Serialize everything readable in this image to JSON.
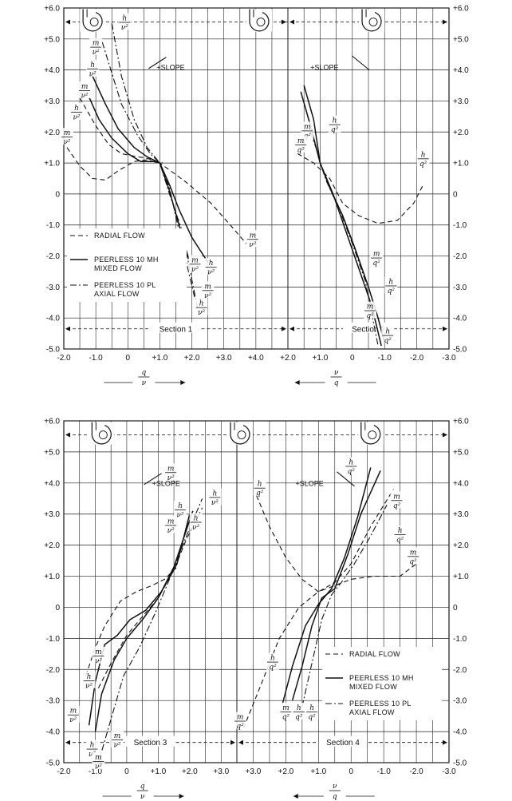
{
  "chart_data": [
    {
      "type": "line",
      "title": "",
      "y_ticks": [
        "+6.0",
        "+5.0",
        "+4.0",
        "+3.0",
        "+2.0",
        "+1.0",
        "0",
        "-1.0",
        "-2.0",
        "-3.0",
        "-4.0",
        "-5.0"
      ],
      "ylim": [
        -5,
        6
      ],
      "grid": true,
      "x_axis_left": {
        "label_num": "q",
        "label_den": "ν",
        "ticks": [
          "-2.0",
          "-1.0",
          "0",
          "+1.0",
          "+2.0",
          "+3.0",
          "+4.0"
        ],
        "range": [
          -2,
          5
        ]
      },
      "x_axis_right": {
        "label_num": "ν",
        "label_den": "q",
        "ticks": [
          "+2.0",
          "+1.0",
          "0",
          "-1.0",
          "-2.0",
          "-3.0"
        ],
        "range": [
          2,
          -3
        ]
      },
      "sections": [
        "Section 1",
        "Section 2"
      ],
      "slope_labels": [
        "+SLOPE",
        "+SLOPE"
      ],
      "legend": [
        "RADIAL FLOW",
        "PEERLESS 10 MH MIXED FLOW",
        "PEERLESS 10 PL AXIAL FLOW"
      ],
      "legend_lines": [
        [
          "RADIAL FLOW"
        ],
        [
          "PEERLESS 10 MH",
          "MIXED FLOW"
        ],
        [
          "PEERLESS 10 PL",
          "AXIAL FLOW"
        ]
      ],
      "curve_labels_left": [
        {
          "num": "h",
          "den": "ν²",
          "x": -0.1,
          "y": 5.6
        },
        {
          "num": "m",
          "den": "ν²",
          "x": -1.0,
          "y": 4.8
        },
        {
          "num": "h",
          "den": "ν²",
          "x": -1.1,
          "y": 4.1
        },
        {
          "num": "m",
          "den": "ν²",
          "x": -1.35,
          "y": 3.4
        },
        {
          "num": "h",
          "den": "ν²",
          "x": -1.6,
          "y": 2.7
        },
        {
          "num": "m",
          "den": "ν²",
          "x": -1.9,
          "y": 1.9
        },
        {
          "num": "m",
          "den": "ν²",
          "x": 3.9,
          "y": -1.4
        },
        {
          "num": "m",
          "den": "ν²",
          "x": 2.1,
          "y": -2.2
        },
        {
          "num": "h",
          "den": "ν²",
          "x": 2.6,
          "y": -2.3
        },
        {
          "num": "m",
          "den": "ν²",
          "x": 2.5,
          "y": -3.05
        },
        {
          "num": "h",
          "den": "ν²",
          "x": 2.3,
          "y": -3.6
        }
      ],
      "curve_labels_right": [
        {
          "num": "h",
          "den": "q²",
          "x": 0.55,
          "y": 2.3
        },
        {
          "num": "m",
          "den": "q²",
          "x": 1.4,
          "y": 2.1
        },
        {
          "num": "m",
          "den": "q²",
          "x": 1.6,
          "y": 1.65
        },
        {
          "num": "h",
          "den": "q²",
          "x": -2.2,
          "y": 1.2
        },
        {
          "num": "m",
          "den": "q²",
          "x": -0.75,
          "y": -2.0
        },
        {
          "num": "h",
          "den": "q²",
          "x": -1.2,
          "y": -2.9
        },
        {
          "num": "m",
          "den": "q²",
          "x": -0.55,
          "y": -3.7
        },
        {
          "num": "h",
          "den": "q²",
          "x": -1.1,
          "y": -4.5
        }
      ],
      "series": [
        {
          "style": "dash",
          "side": "left",
          "x": [
            -1.9,
            -1.5,
            -1.1,
            -0.7,
            -0.3,
            0.2,
            0.6,
            1.0,
            1.8,
            2.6,
            3.2,
            3.7
          ],
          "y": [
            1.5,
            0.9,
            0.5,
            0.45,
            0.75,
            1.05,
            1.1,
            1.0,
            0.4,
            -0.3,
            -1.0,
            -1.6
          ]
        },
        {
          "style": "dash",
          "side": "left",
          "x": [
            -1.5,
            -1.0,
            -0.6,
            -0.2,
            0.3,
            0.6,
            0.9,
            1.1
          ],
          "y": [
            3.1,
            2.2,
            1.6,
            1.3,
            1.2,
            1.15,
            1.05,
            1.0
          ]
        },
        {
          "style": "solid",
          "side": "left",
          "x": [
            -1.2,
            -0.9,
            -0.5,
            0.0,
            0.4,
            0.8,
            1.0,
            1.3,
            1.6,
            2.0,
            2.5
          ],
          "y": [
            3.1,
            2.4,
            1.8,
            1.3,
            1.05,
            1.05,
            1.0,
            0.3,
            -0.5,
            -1.4,
            -2.2
          ]
        },
        {
          "style": "solid",
          "side": "left",
          "x": [
            -1.1,
            -0.7,
            -0.3,
            0.2,
            0.6,
            1.0,
            1.3,
            1.6,
            1.9
          ],
          "y": [
            3.8,
            2.9,
            2.1,
            1.5,
            1.2,
            1.0,
            0.1,
            -1.0,
            -2.1
          ]
        },
        {
          "style": "dashdot",
          "side": "left",
          "x": [
            -0.8,
            -0.5,
            -0.2,
            0.3,
            0.7,
            1.0,
            1.3,
            1.6,
            2.1
          ],
          "y": [
            4.9,
            3.9,
            2.9,
            1.9,
            1.3,
            1.0,
            0.2,
            -1.2,
            -3.4
          ]
        },
        {
          "style": "dashdot",
          "side": "left",
          "x": [
            -0.5,
            -0.2,
            0.2,
            0.6,
            1.0,
            1.3,
            1.7,
            2.2
          ],
          "y": [
            5.5,
            3.8,
            2.4,
            1.5,
            1.0,
            0.0,
            -1.2,
            -3.8
          ]
        },
        {
          "style": "dash",
          "side": "right",
          "x": [
            1.7,
            1.2,
            0.7,
            0.3,
            -0.2,
            -0.8,
            -1.4,
            -1.9,
            -2.2
          ],
          "y": [
            1.3,
            1.0,
            0.5,
            -0.3,
            -0.7,
            -0.95,
            -0.85,
            -0.3,
            0.3
          ]
        },
        {
          "style": "solid",
          "side": "right",
          "x": [
            1.6,
            1.3,
            1.0,
            0.7,
            0.3,
            -0.1,
            -0.5,
            -0.8,
            -1.0
          ],
          "y": [
            3.3,
            2.2,
            1.0,
            0.2,
            -0.7,
            -1.8,
            -3.0,
            -4.0,
            -4.8
          ]
        },
        {
          "style": "solid",
          "side": "right",
          "x": [
            1.5,
            1.2,
            1.0,
            0.6,
            0.2,
            -0.2,
            -0.6,
            -0.9
          ],
          "y": [
            3.5,
            2.4,
            1.0,
            0.0,
            -1.2,
            -2.4,
            -3.6,
            -4.9
          ]
        },
        {
          "style": "dashdot",
          "side": "right",
          "x": [
            1.3,
            1.1,
            1.0,
            0.8,
            0.4,
            0.0,
            -0.4,
            -0.8
          ],
          "y": [
            2.0,
            1.4,
            1.0,
            0.4,
            -0.5,
            -1.6,
            -2.8,
            -4.9
          ]
        }
      ]
    },
    {
      "type": "line",
      "title": "",
      "y_ticks": [
        "+6.0",
        "+5.0",
        "+4.0",
        "+3.0",
        "+2.0",
        "+1.0",
        "0",
        "-1.0",
        "-2.0",
        "-3.0",
        "-4.0",
        "-5.0"
      ],
      "ylim": [
        -5,
        6
      ],
      "grid": true,
      "x_axis_left": {
        "label_num": "q",
        "label_den": "ν",
        "ticks": [
          "-2.0",
          "-1.0",
          "0",
          "+1.0",
          "+2.0",
          "+3.0"
        ],
        "range": [
          -2,
          3.5
        ]
      },
      "x_axis_right": {
        "label_num": "ν",
        "label_den": "q",
        "ticks": [
          "+3.0",
          "+2.0",
          "+1.0",
          "0",
          "-1.0",
          "-2.0",
          "-3.0"
        ],
        "range": [
          3.5,
          -3
        ]
      },
      "sections": [
        "Section 3",
        "Section 4"
      ],
      "slope_labels": [
        "+SLOPE",
        "+SLOPE"
      ],
      "legend": [
        "RADIAL FLOW",
        "PEERLESS 10 MH MIXED FLOW",
        "PEERLESS 10 PL AXIAL FLOW"
      ],
      "legend_lines": [
        [
          "RADIAL FLOW"
        ],
        [
          "PEERLESS 10 MH",
          "MIXED FLOW"
        ],
        [
          "PEERLESS 10 PL",
          "AXIAL FLOW"
        ]
      ],
      "curve_labels_left": [
        {
          "num": "m",
          "den": "ν²",
          "x": 1.4,
          "y": 4.4
        },
        {
          "num": "h",
          "den": "ν²",
          "x": 2.8,
          "y": 3.6
        },
        {
          "num": "h",
          "den": "ν²",
          "x": 1.7,
          "y": 3.2
        },
        {
          "num": "m",
          "den": "ν²",
          "x": 1.4,
          "y": 2.7
        },
        {
          "num": "h",
          "den": "ν²",
          "x": 2.2,
          "y": 2.8
        },
        {
          "num": "m",
          "den": "ν²",
          "x": -0.9,
          "y": -1.5
        },
        {
          "num": "h",
          "den": "ν²",
          "x": -1.2,
          "y": -2.3
        },
        {
          "num": "m",
          "den": "ν²",
          "x": -1.7,
          "y": -3.4
        },
        {
          "num": "m",
          "den": "ν²",
          "x": -0.3,
          "y": -4.2
        },
        {
          "num": "h",
          "den": "ν²",
          "x": -1.1,
          "y": -4.5
        },
        {
          "num": "m",
          "den": "ν²",
          "x": -0.9,
          "y": -4.9
        }
      ],
      "curve_labels_right": [
        {
          "num": "h",
          "den": "q²",
          "x": 0.0,
          "y": 4.6
        },
        {
          "num": "m",
          "den": "q²",
          "x": -1.4,
          "y": 3.5
        },
        {
          "num": "h",
          "den": "q²",
          "x": -1.5,
          "y": 2.4
        },
        {
          "num": "m",
          "den": "q²",
          "x": -1.9,
          "y": 1.7
        },
        {
          "num": "h",
          "den": "q²",
          "x": 2.8,
          "y": 3.9
        },
        {
          "num": "h",
          "den": "q²",
          "x": 2.4,
          "y": -1.7
        },
        {
          "num": "m",
          "den": "q²",
          "x": 3.4,
          "y": -3.6
        },
        {
          "num": "m",
          "den": "q²",
          "x": 2.0,
          "y": -3.3
        },
        {
          "num": "h",
          "den": "q²",
          "x": 1.6,
          "y": -3.3
        },
        {
          "num": "h",
          "den": "q²",
          "x": 1.2,
          "y": -3.3
        }
      ],
      "series": [
        {
          "style": "dash",
          "side": "left",
          "x": [
            -1.3,
            -1.0,
            -0.7,
            -0.2,
            0.3,
            0.8,
            1.2,
            1.6
          ],
          "y": [
            -2.2,
            -1.3,
            -0.6,
            0.2,
            0.5,
            0.7,
            0.9,
            1.3
          ]
        },
        {
          "style": "dash",
          "side": "left",
          "x": [
            -0.9,
            -0.5,
            0.0,
            0.5,
            1.0,
            1.5,
            1.9,
            2.4
          ],
          "y": [
            -2.6,
            -1.8,
            -0.9,
            -0.3,
            0.3,
            1.2,
            2.2,
            3.2
          ]
        },
        {
          "style": "solid",
          "side": "left",
          "x": [
            -1.2,
            -1.0,
            -0.7,
            -0.3,
            0.1,
            0.6,
            1.1,
            1.6,
            2.0
          ],
          "y": [
            -3.8,
            -2.4,
            -1.2,
            -0.9,
            -0.4,
            -0.1,
            0.5,
            1.4,
            3.0
          ]
        },
        {
          "style": "solid",
          "side": "left",
          "x": [
            -1.0,
            -0.8,
            -0.4,
            0.0,
            0.5,
            1.0,
            1.5,
            2.1
          ],
          "y": [
            -4.0,
            -2.8,
            -1.7,
            -1.0,
            -0.4,
            0.3,
            1.3,
            3.1
          ]
        },
        {
          "style": "dashdot",
          "side": "left",
          "x": [
            -0.9,
            -0.5,
            -0.1,
            0.4,
            0.9,
            1.4,
            1.9,
            2.4
          ],
          "y": [
            -5.0,
            -3.6,
            -2.2,
            -1.3,
            -0.2,
            1.0,
            2.3,
            3.5
          ]
        },
        {
          "style": "dash",
          "side": "right",
          "x": [
            2.9,
            2.5,
            2.0,
            1.5,
            1.0,
            0.5,
            0.0,
            -0.7,
            -1.5,
            -2.0
          ],
          "y": [
            3.6,
            2.6,
            1.6,
            0.9,
            0.5,
            0.7,
            0.9,
            1.0,
            1.0,
            1.4
          ]
        },
        {
          "style": "dash",
          "side": "right",
          "x": [
            3.3,
            2.8,
            2.2,
            1.6,
            1.0,
            0.5,
            0.0,
            -0.6,
            -1.3
          ],
          "y": [
            -3.9,
            -2.6,
            -1.0,
            0.0,
            0.5,
            0.8,
            1.4,
            2.6,
            3.8
          ]
        },
        {
          "style": "solid",
          "side": "right",
          "x": [
            2.1,
            1.8,
            1.4,
            1.0,
            0.6,
            0.2,
            -0.2,
            -0.6
          ],
          "y": [
            -3.1,
            -1.9,
            -0.6,
            0.1,
            0.6,
            1.6,
            2.9,
            4.5
          ]
        },
        {
          "style": "solid",
          "side": "right",
          "x": [
            1.8,
            1.5,
            1.2,
            0.9,
            0.5,
            0.1,
            -0.3,
            -0.9
          ],
          "y": [
            -3.0,
            -1.9,
            -0.6,
            0.3,
            0.6,
            1.7,
            3.0,
            4.4
          ]
        },
        {
          "style": "dashdot",
          "side": "right",
          "x": [
            1.5,
            1.2,
            0.9,
            0.6,
            0.3,
            -0.1,
            -0.6,
            -1.1
          ],
          "y": [
            -3.2,
            -1.8,
            -0.4,
            0.4,
            0.8,
            1.4,
            2.3,
            3.3
          ]
        }
      ]
    }
  ]
}
